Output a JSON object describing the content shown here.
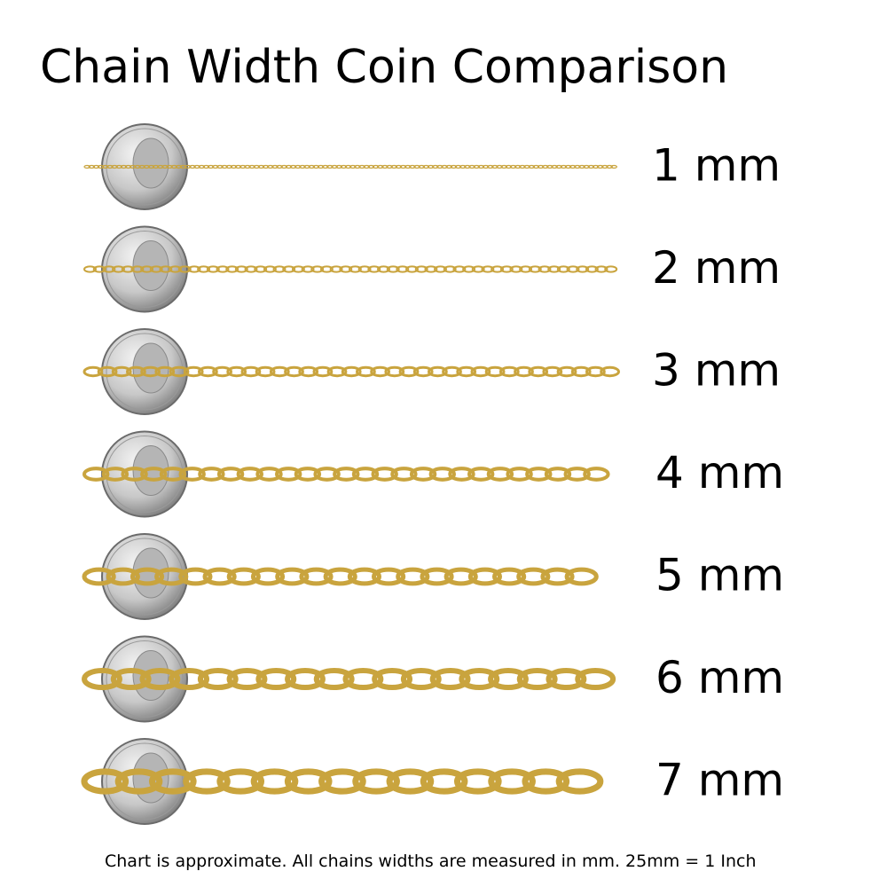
{
  "title": "Chain Width Coin Comparison",
  "rows": [
    {
      "label": "1 mm"
    },
    {
      "label": "2 mm"
    },
    {
      "label": "3 mm"
    },
    {
      "label": "4 mm"
    },
    {
      "label": "5 mm"
    },
    {
      "label": "6 mm"
    },
    {
      "label": "7 mm"
    }
  ],
  "footnote": "Chart is approximate. All chains widths are measured in mm.  25mm = 1 Inch"
}
